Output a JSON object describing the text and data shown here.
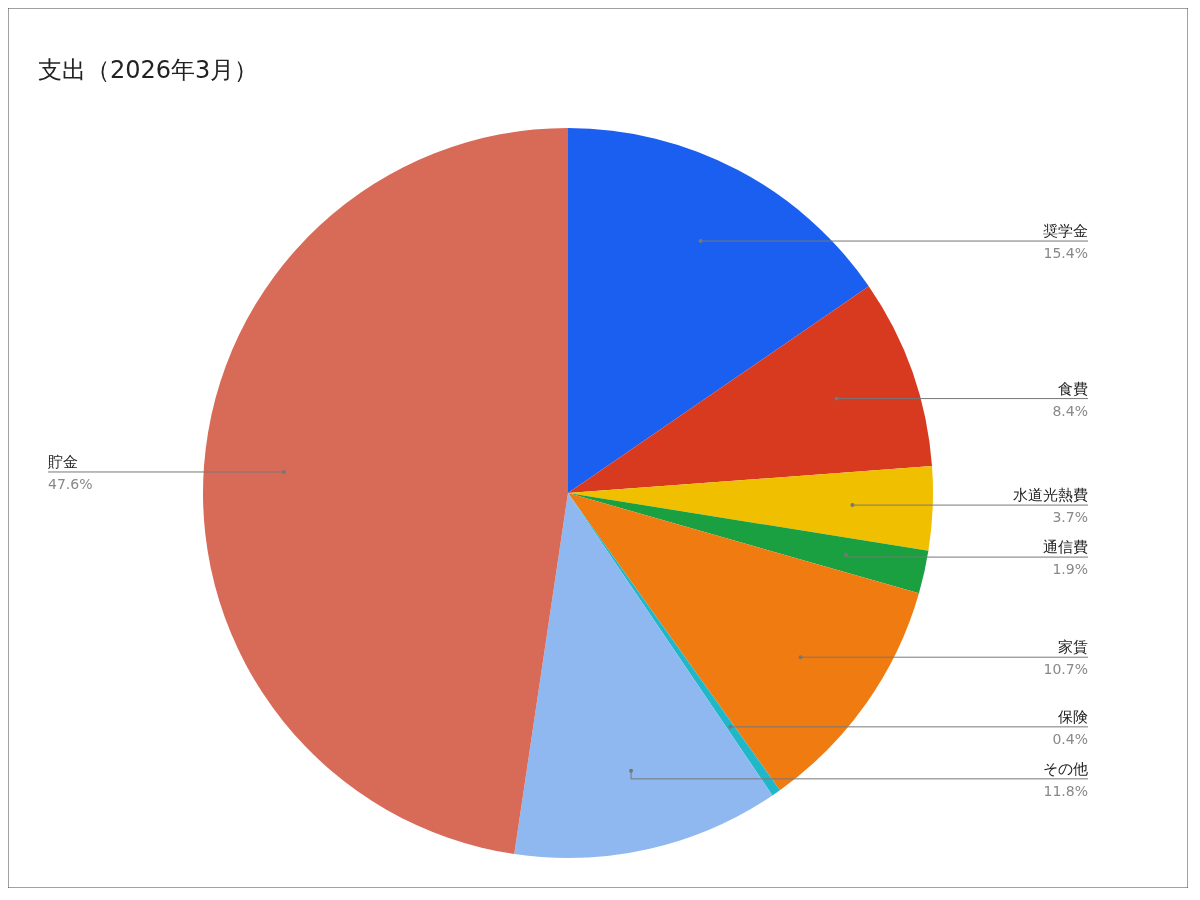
{
  "chart_data": {
    "type": "pie",
    "title": "支出（2026年3月）",
    "categories": [
      "奨学金",
      "食費",
      "水道光熱費",
      "通信費",
      "家賃",
      "保険",
      "その他",
      "貯金"
    ],
    "values": [
      15.4,
      8.4,
      3.7,
      1.9,
      10.7,
      0.4,
      11.8,
      47.6
    ],
    "colors": [
      "#1a5ff0",
      "#d83a1f",
      "#f0c000",
      "#1aa040",
      "#f07b10",
      "#20b8c8",
      "#90b8f0",
      "#d86a58"
    ],
    "value_labels": [
      "15.4%",
      "8.4%",
      "3.7%",
      "1.9%",
      "10.7%",
      "0.4%",
      "11.8%",
      "47.6%"
    ]
  }
}
